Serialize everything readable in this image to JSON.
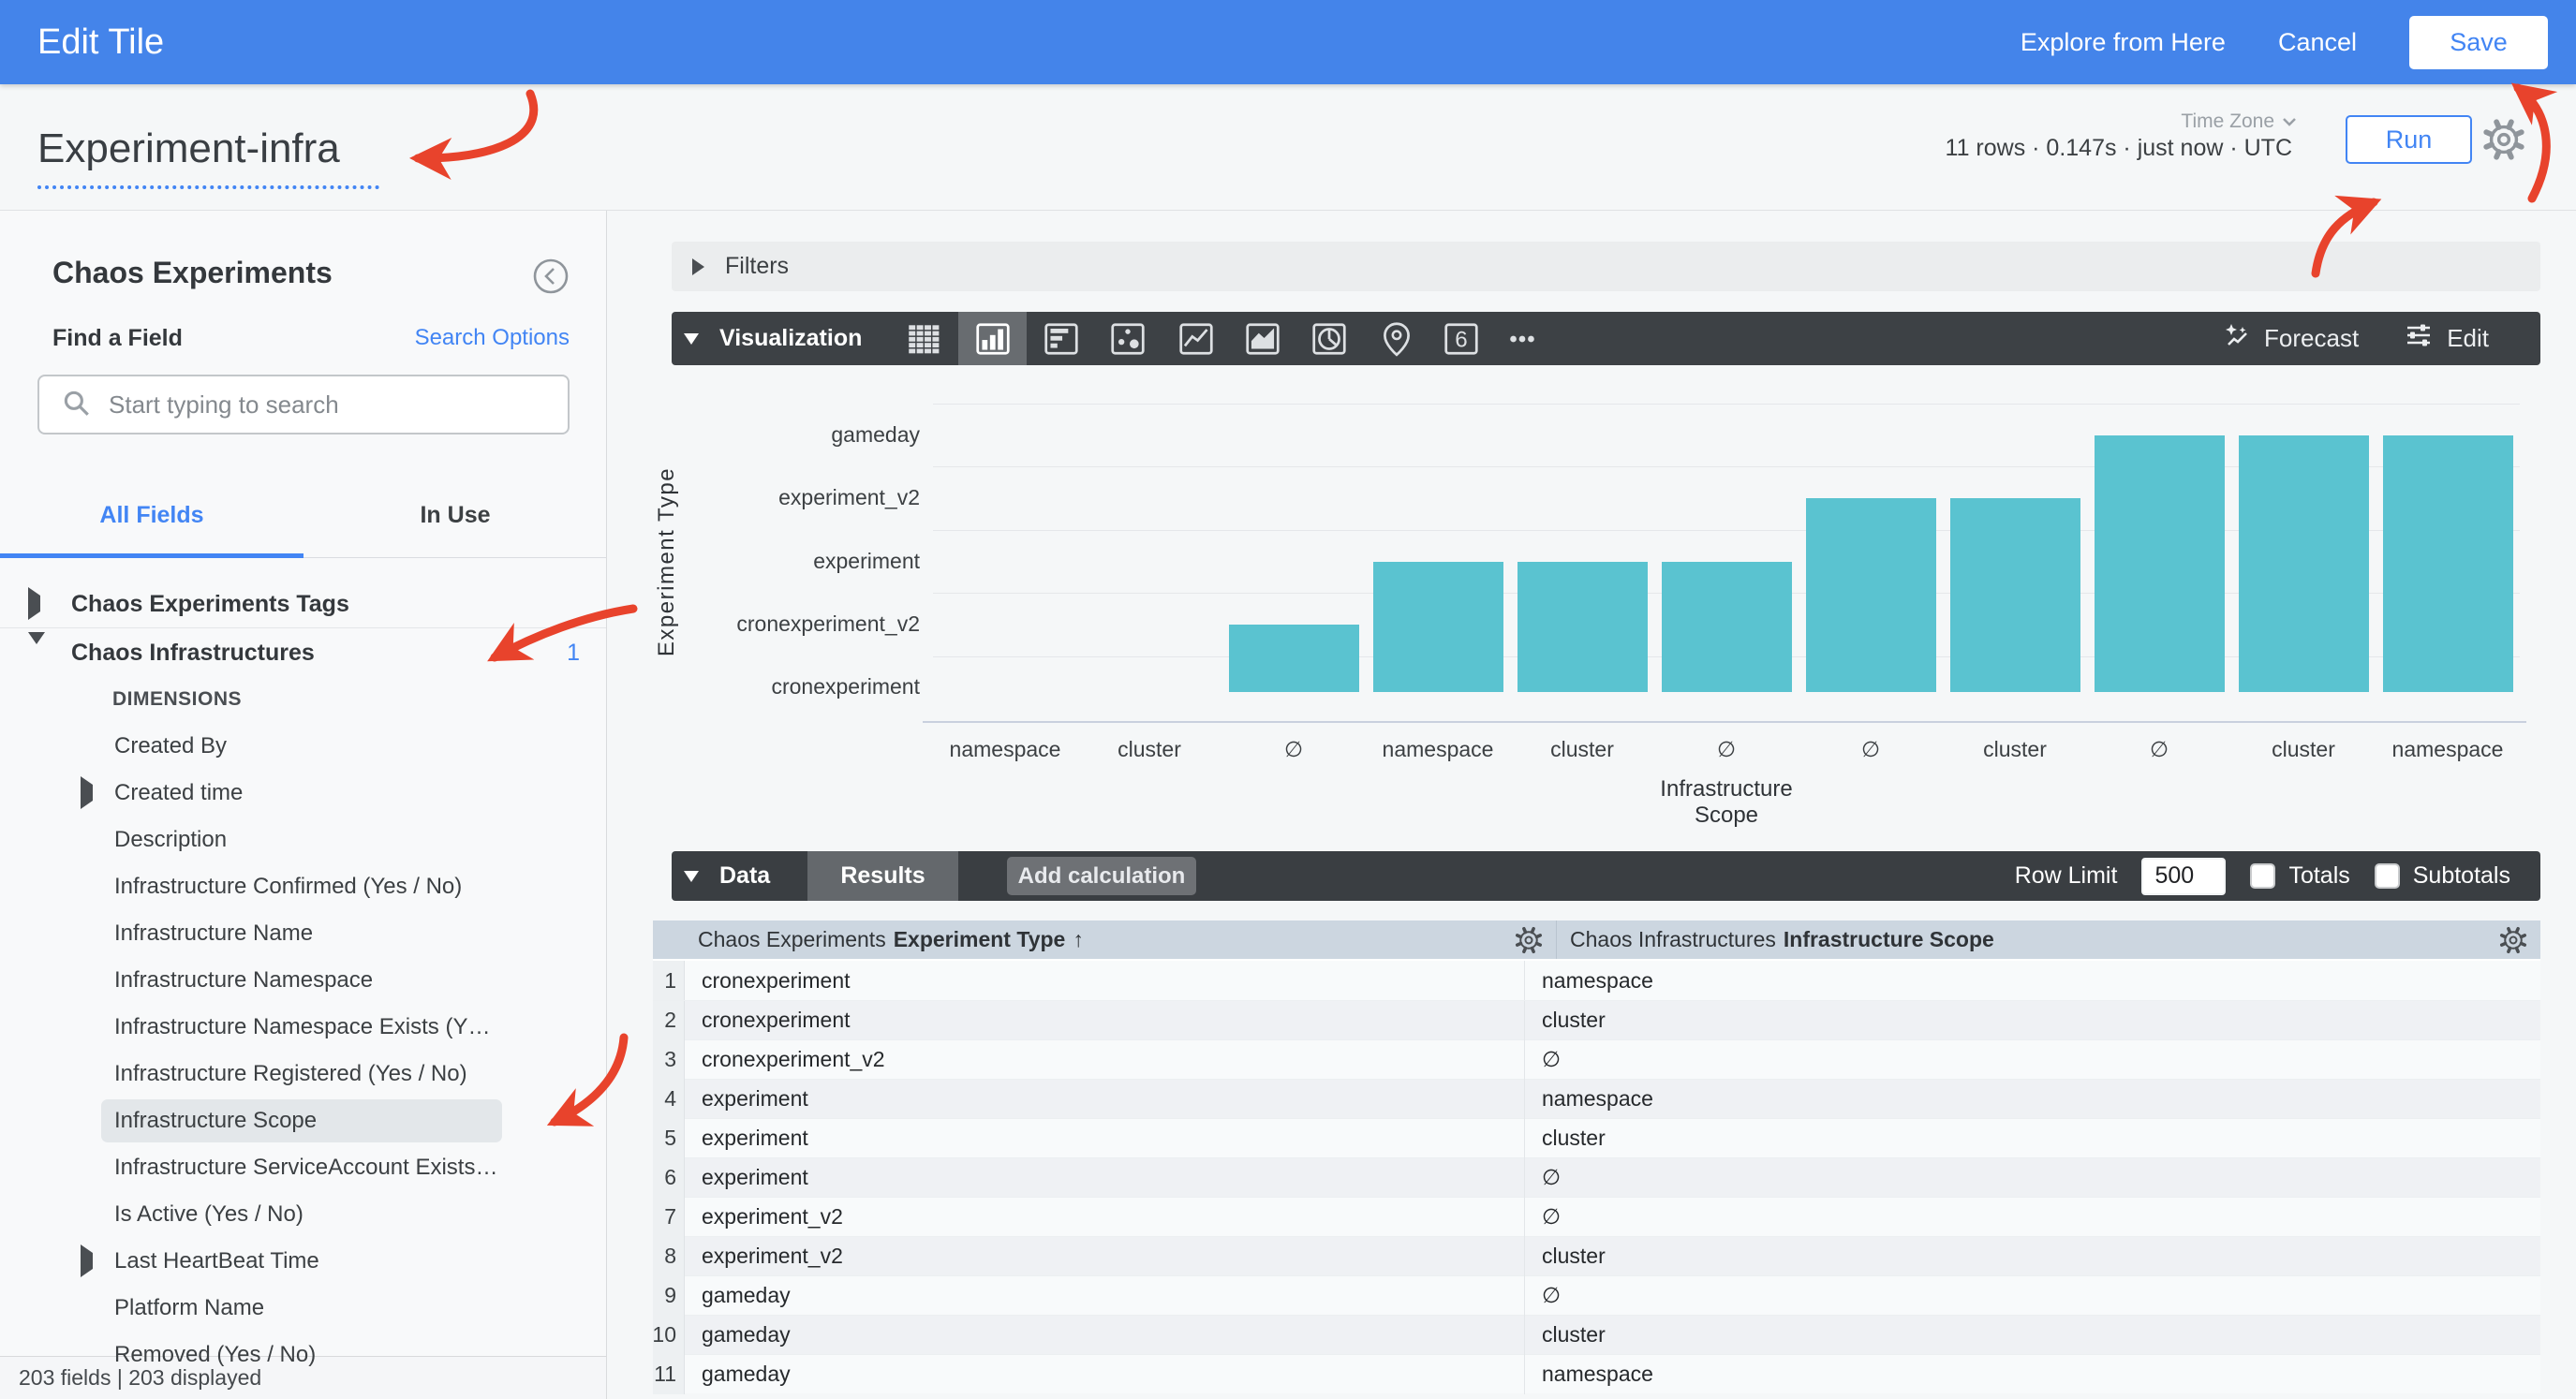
{
  "top_bar": {
    "title": "Edit Tile",
    "explore": "Explore from Here",
    "cancel": "Cancel",
    "save": "Save"
  },
  "title_bar": {
    "tile_name": "Experiment-infra",
    "stats": "11 rows · 0.147s · just now · UTC",
    "time_zone_label": "Time Zone",
    "run": "Run"
  },
  "sidebar": {
    "heading": "Chaos Experiments",
    "find_label": "Find a Field",
    "search_options": "Search Options",
    "search_placeholder": "Start typing to search",
    "tabs": {
      "all_fields": "All Fields",
      "in_use": "In Use"
    },
    "items": [
      {
        "label": "Chaos Experiments Tags",
        "kind": "group",
        "caret": "right"
      },
      {
        "kind": "divider"
      },
      {
        "label": "Chaos Infrastructures",
        "kind": "group",
        "caret": "down",
        "badge": "1"
      },
      {
        "label": "DIMENSIONS",
        "kind": "section"
      },
      {
        "label": "Created By",
        "kind": "field"
      },
      {
        "label": "Created time",
        "kind": "field",
        "caret": "right"
      },
      {
        "label": "Description",
        "kind": "field"
      },
      {
        "label": "Infrastructure Confirmed (Yes / No)",
        "kind": "field"
      },
      {
        "label": "Infrastructure Name",
        "kind": "field"
      },
      {
        "label": "Infrastructure Namespace",
        "kind": "field"
      },
      {
        "label": "Infrastructure Namespace Exists (Y…",
        "kind": "field"
      },
      {
        "label": "Infrastructure Registered (Yes / No)",
        "kind": "field"
      },
      {
        "label": "Infrastructure Scope",
        "kind": "field",
        "highlighted": true
      },
      {
        "label": "Infrastructure ServiceAccount Exists…",
        "kind": "field"
      },
      {
        "label": "Is Active (Yes / No)",
        "kind": "field"
      },
      {
        "label": "Last HeartBeat Time",
        "kind": "field",
        "caret": "right"
      },
      {
        "label": "Platform Name",
        "kind": "field"
      },
      {
        "label": "Removed (Yes / No)",
        "kind": "field"
      }
    ],
    "footer": "203 fields | 203 displayed"
  },
  "filters": {
    "label": "Filters"
  },
  "visualization": {
    "label": "Visualization",
    "icons": [
      {
        "name": "table-chart"
      },
      {
        "name": "column-chart",
        "selected": true
      },
      {
        "name": "bar-chart"
      },
      {
        "name": "scatter-chart"
      },
      {
        "name": "line-chart"
      },
      {
        "name": "area-chart"
      },
      {
        "name": "pie-chart"
      },
      {
        "name": "map-chart"
      },
      {
        "name": "single-value"
      },
      {
        "name": "more-options"
      }
    ],
    "forecast": "Forecast",
    "edit": "Edit"
  },
  "chart_data": {
    "type": "bar",
    "title": "",
    "x": [
      "namespace",
      "cluster",
      "∅",
      "namespace",
      "cluster",
      "∅",
      "∅",
      "cluster",
      "∅",
      "cluster",
      "namespace"
    ],
    "y_categories": [
      "cronexperiment",
      "cronexperiment_v2",
      "experiment",
      "experiment_v2",
      "gameday"
    ],
    "values": [
      0,
      0,
      1,
      2,
      2,
      2,
      3,
      3,
      4,
      4,
      4
    ],
    "value_meaning": "ordinal index into y_categories; each bar rises from the cronexperiment baseline to its experiment type's row",
    "xlabel": "Infrastructure Scope",
    "ylabel": "Experiment Type",
    "bar_color": "#5ac3d0",
    "grid": true,
    "legend_position": "none"
  },
  "data_section": {
    "label": "Data",
    "results_tab": "Results",
    "add_calculation": "Add calculation",
    "row_limit_label": "Row Limit",
    "row_limit_value": "500",
    "totals_label": "Totals",
    "subtotals_label": "Subtotals",
    "totals_checked": false,
    "subtotals_checked": false
  },
  "table": {
    "columns": [
      {
        "model": "Chaos Experiments",
        "field": "Experiment Type",
        "sort": "↑"
      },
      {
        "model": "Chaos Infrastructures",
        "field": "Infrastructure Scope",
        "sort": ""
      }
    ],
    "rows": [
      [
        1,
        "cronexperiment",
        "namespace"
      ],
      [
        2,
        "cronexperiment",
        "cluster"
      ],
      [
        3,
        "cronexperiment_v2",
        "∅"
      ],
      [
        4,
        "experiment",
        "namespace"
      ],
      [
        5,
        "experiment",
        "cluster"
      ],
      [
        6,
        "experiment",
        "∅"
      ],
      [
        7,
        "experiment_v2",
        "∅"
      ],
      [
        8,
        "experiment_v2",
        "cluster"
      ],
      [
        9,
        "gameday",
        "∅"
      ],
      [
        10,
        "gameday",
        "cluster"
      ],
      [
        11,
        "gameday",
        "namespace"
      ]
    ]
  },
  "annotations": {
    "arrow_color": "#e8432c",
    "arrows": [
      "points-at-tile-name",
      "points-at-save",
      "points-at-run",
      "points-at-chaos-infrastructures",
      "points-at-infrastructure-scope"
    ]
  }
}
